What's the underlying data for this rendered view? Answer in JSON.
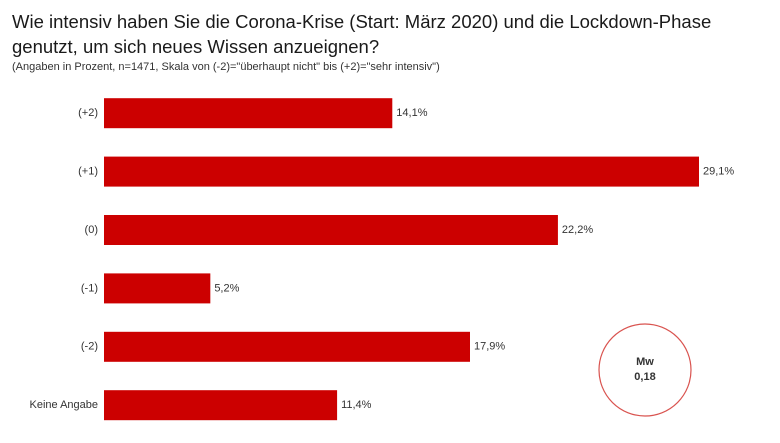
{
  "chart_data": {
    "type": "bar",
    "orientation": "horizontal",
    "title": "Wie intensiv haben Sie die Corona-Krise (Start: März 2020) und die Lockdown-Phase genutzt, um sich neues Wissen anzueignen?",
    "subtitle": "(Angaben in Prozent, n=1471, Skala von (-2)=\"überhaupt nicht\" bis (+2)=\"sehr intensiv\")",
    "categories": [
      "(+2)",
      "(+1)",
      "(0)",
      "(-1)",
      "(-2)",
      "Keine Angabe"
    ],
    "values": [
      14.1,
      29.1,
      22.2,
      5.2,
      17.9,
      11.4
    ],
    "value_labels": [
      "14,1%",
      "29,1%",
      "22,2%",
      "5,2%",
      "17,9%",
      "11,4%"
    ],
    "color": "#cc0000",
    "mean": {
      "label": "Mw",
      "value": 0.18,
      "value_label": "0,18",
      "color": "#d9534f"
    }
  }
}
